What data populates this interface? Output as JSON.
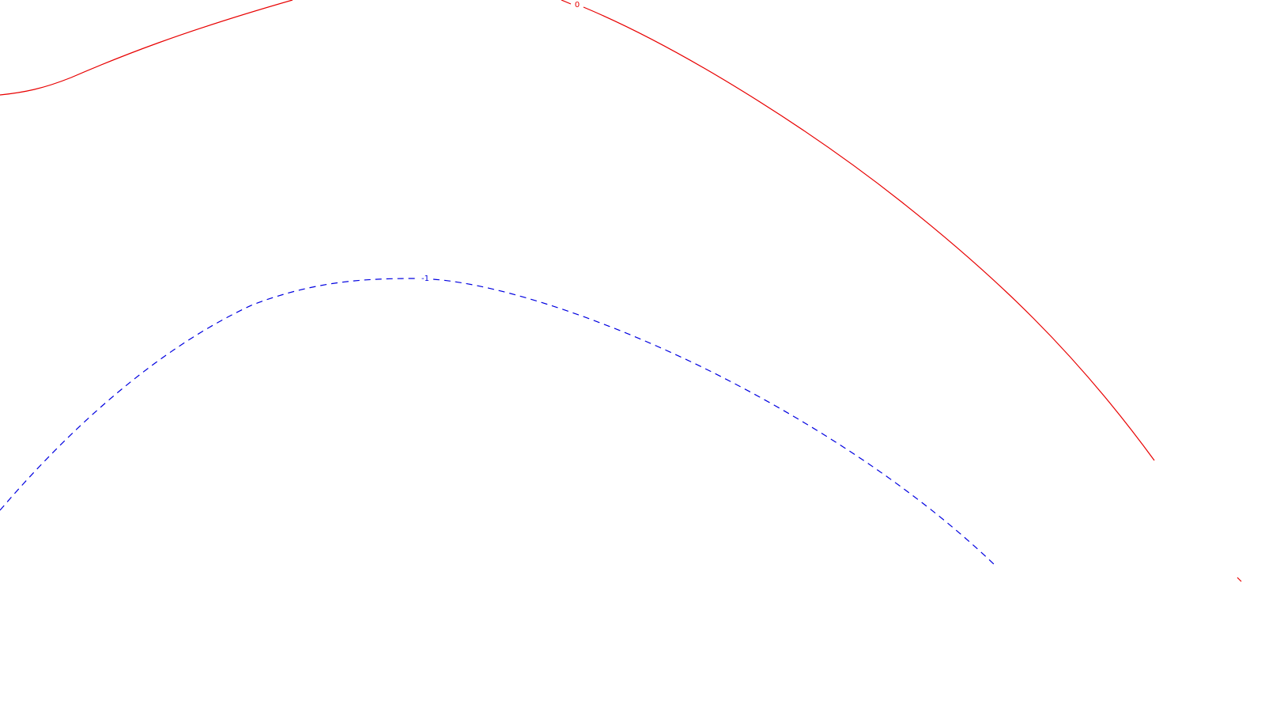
{
  "contours": [
    {
      "level_label": "0",
      "color": "#e80000",
      "line_style": "solid"
    },
    {
      "level_label": "-1",
      "color": "#0000e0",
      "line_style": "dashed"
    }
  ]
}
